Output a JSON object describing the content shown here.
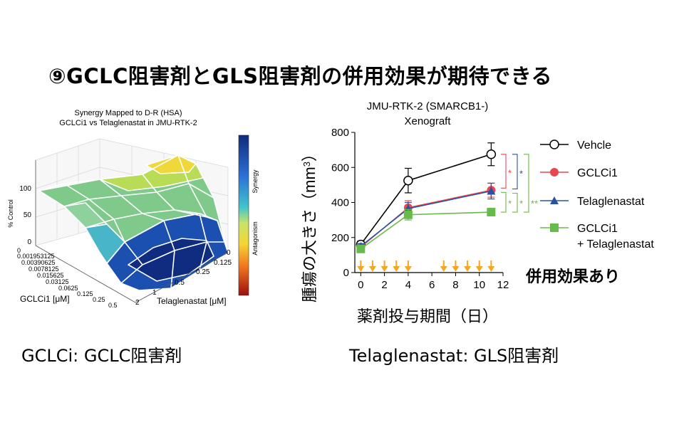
{
  "page": {
    "heading": "⑨GCLC阻害剤とGLS阻害剤の併用効果が期待できる",
    "caption_left": "GCLCi: GCLC阻害剤",
    "caption_right": "Telaglenastat: GLS阻害剤"
  },
  "synergy_plot": {
    "title_line1": "Synergy Mapped to D-R (HSA)",
    "title_line2": "GCLCi1 vs Telaglenastat in JMU-RTK-2",
    "z_label": "% Control",
    "z_ticks": [
      "100",
      "50",
      "0"
    ],
    "x_label": "GCLCi1 [μM]",
    "x_ticks": [
      "0",
      "0.001953125",
      "0.00390625",
      "0.0078125",
      "0.015625",
      "0.03125",
      "0.0625",
      "0.125",
      "0.25",
      "0.5"
    ],
    "y_label": "Telaglenastat [μM]",
    "y_ticks": [
      "0",
      "0.125",
      "0.25",
      "0.5",
      "1",
      "2"
    ],
    "colorbar_top": "Synergy",
    "colorbar_bottom": "Antagonism"
  },
  "chart_data": {
    "type": "line",
    "title": "JMU-RTK-2 (SMARCB1-)",
    "subtitle": "Xenograft",
    "xlabel": "薬剤投与期間（日）",
    "ylabel_text": "腫瘍の大きさ（mm",
    "ylabel_sup": "3",
    "ylabel_close": "）",
    "x_ticks": [
      "0",
      "2",
      "4",
      "6",
      "8",
      "10",
      "12"
    ],
    "y_ticks": [
      "0",
      "200",
      "400",
      "600",
      "800"
    ],
    "xlim": [
      -0.5,
      12
    ],
    "ylim": [
      0,
      800
    ],
    "x": [
      0,
      4,
      11
    ],
    "series": [
      {
        "name": "Vehcle",
        "values": [
          160,
          525,
          675
        ],
        "err": [
          20,
          70,
          65
        ],
        "color": "#000000",
        "marker": "circle-open"
      },
      {
        "name": "GCLCi1",
        "values": [
          145,
          370,
          470
        ],
        "err": [
          15,
          40,
          40
        ],
        "color": "#e8474f",
        "marker": "circle"
      },
      {
        "name": "Telaglenastat",
        "values": [
          150,
          365,
          465
        ],
        "err": [
          15,
          35,
          45
        ],
        "color": "#2952a3",
        "marker": "triangle"
      },
      {
        "name": "GCLCi1",
        "name_line2": "+ Telaglenastat",
        "values": [
          135,
          330,
          345
        ],
        "err": [
          15,
          30,
          15
        ],
        "color": "#66bb4a",
        "marker": "square"
      }
    ],
    "dosing_days": [
      0,
      1,
      2,
      3,
      4,
      7,
      8,
      9,
      10,
      11
    ],
    "dosing_color": "#f5a623",
    "significance": [
      {
        "label": "*",
        "color": "#e8474f"
      },
      {
        "label": "*",
        "color": "#2952a3"
      },
      {
        "label": "*",
        "color": "#66bb4a"
      },
      {
        "label": "*",
        "color": "#66bb4a"
      },
      {
        "label": "**",
        "color": "#66bb4a"
      }
    ],
    "annotation": "併用効果あり"
  }
}
